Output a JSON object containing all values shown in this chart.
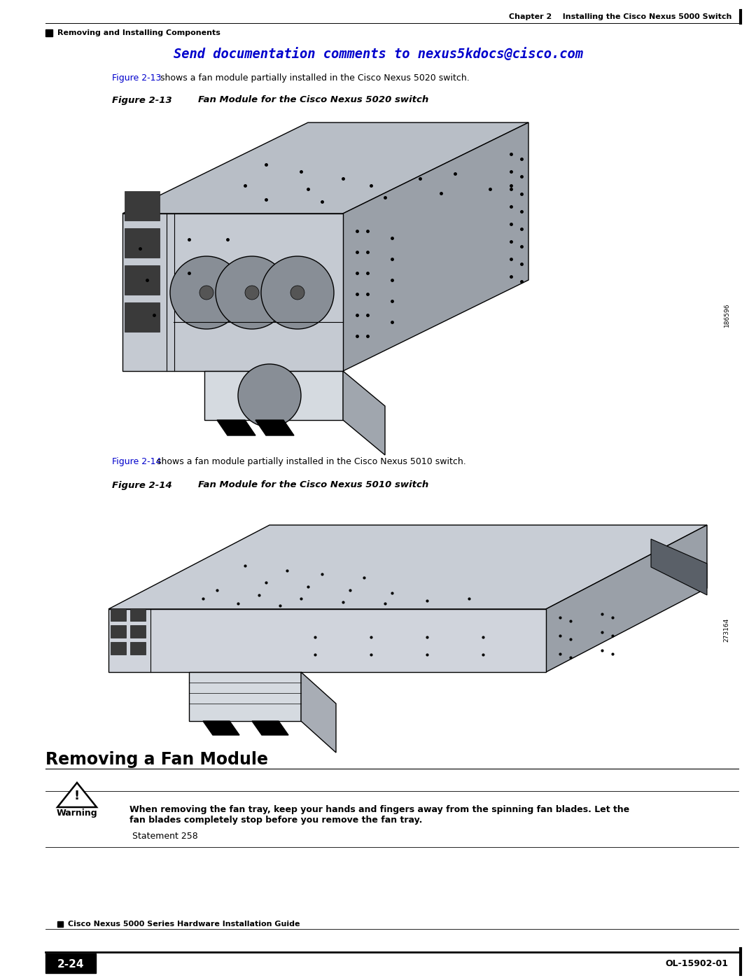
{
  "page_bg": "#ffffff",
  "header_chapter": "Chapter 2    Installing the Cisco Nexus 5000 Switch",
  "header_section": "Removing and Installing Components",
  "banner_text": "Send documentation comments to nexus5kdocs@cisco.com",
  "banner_color": "#0000cc",
  "body_text1_prefix": "Figure 2-13",
  "body_text1_prefix_color": "#0000cc",
  "body_text1_rest": " shows a fan module partially installed in the Cisco Nexus 5020 switch.",
  "fig1_label_bold": "Figure 2-13",
  "fig1_label_rest": "        Fan Module for the Cisco Nexus 5020 switch",
  "fig1_watermark": "186596",
  "body_text2_prefix": "Figure 2-14",
  "body_text2_prefix_color": "#0000cc",
  "body_text2_rest": "shows a fan module partially installed in the Cisco Nexus 5010 switch.",
  "fig2_label_bold": "Figure 2-14",
  "fig2_label_rest": "        Fan Module for the Cisco Nexus 5010 switch",
  "fig2_watermark": "273164",
  "section_title": "Removing a Fan Module",
  "warning_title": "Warning",
  "warning_bold": "When removing the fan tray, keep your hands and fingers away from the spinning fan blades. Let the\nfan blades completely stop before you remove the fan tray.",
  "warning_rest": " Statement 258",
  "footer_title": "Cisco Nexus 5000 Series Hardware Installation Guide",
  "footer_page": "2-24",
  "footer_right": "OL-15902-01"
}
